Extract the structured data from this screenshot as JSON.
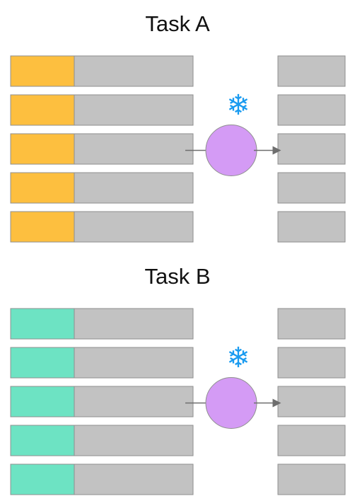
{
  "tasks": [
    {
      "title": "Task A",
      "prefix_color": "#FDBF3F",
      "row_count": 5,
      "frozen_icon": "snowflake-icon",
      "frozen_glyph": "❄"
    },
    {
      "title": "Task B",
      "prefix_color": "#6DE3C3",
      "row_count": 5,
      "frozen_icon": "snowflake-icon",
      "frozen_glyph": "❄"
    }
  ],
  "colors": {
    "row_fill": "#C2C2C2",
    "row_stroke": "#8F8F8F",
    "module_fill": "#D49BF5",
    "module_stroke": "#8F8F8F",
    "arrow": "#6E6E6E",
    "snowflake": "#1A9BF0"
  }
}
